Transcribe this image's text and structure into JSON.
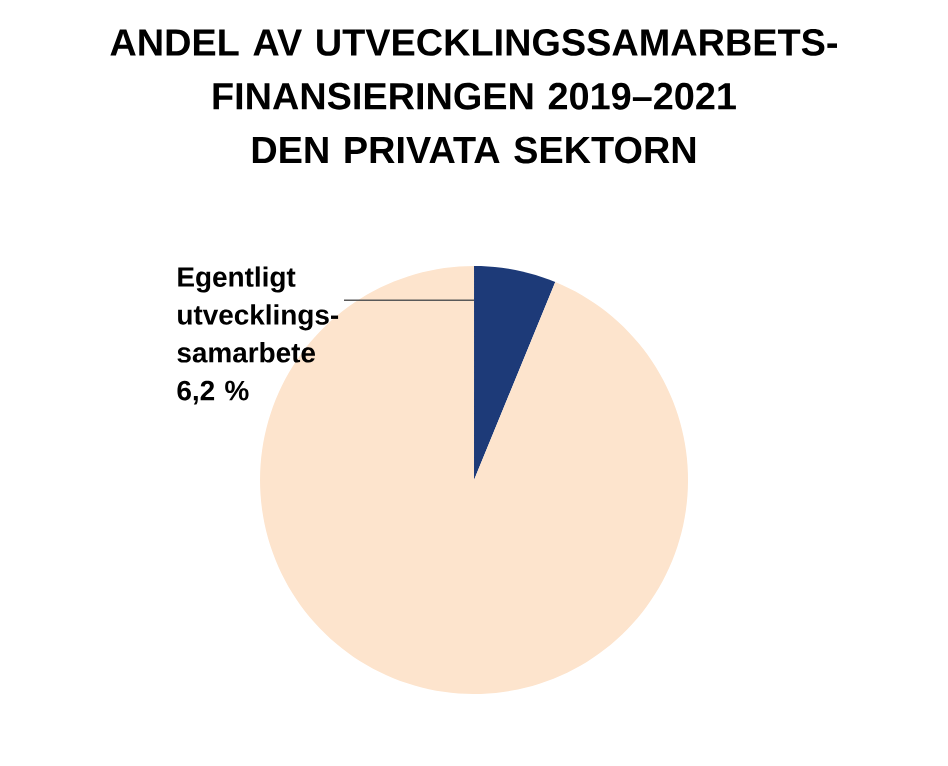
{
  "chart_data": {
    "type": "pie",
    "title": "ANDEL AV UTVECKLINGSSAMARBETS-FINANSIERINGEN 2019–2021",
    "subtitle": "DEN PRIVATA SEKTORN",
    "categories": [
      "Egentligt utvecklings-samarbete",
      null
    ],
    "values": [
      6.2,
      93.8
    ],
    "value_labels": [
      "6,2 %",
      null
    ],
    "colors": [
      "#1d3a78",
      "#fde4cd"
    ]
  }
}
